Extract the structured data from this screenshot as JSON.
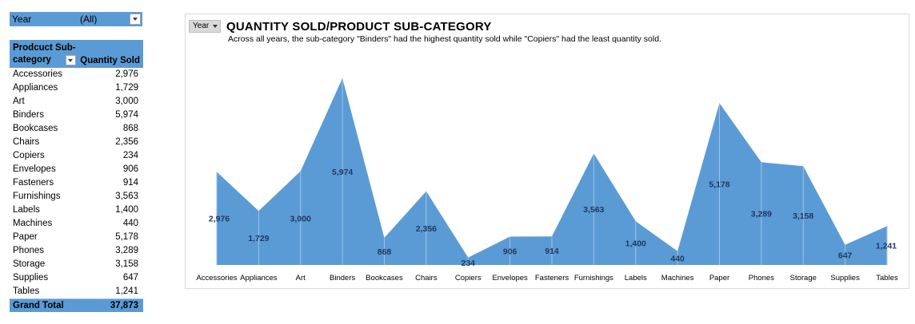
{
  "filter": {
    "label": "Year",
    "value": "(All)"
  },
  "pivot": {
    "row_header": "Prodcuct Sub-category",
    "value_header": "Quantity Sold",
    "rows": [
      {
        "name": "Accessories",
        "value": "2,976"
      },
      {
        "name": "Appliances",
        "value": "1,729"
      },
      {
        "name": "Art",
        "value": "3,000"
      },
      {
        "name": "Binders",
        "value": "5,974"
      },
      {
        "name": "Bookcases",
        "value": "868"
      },
      {
        "name": "Chairs",
        "value": "2,356"
      },
      {
        "name": "Copiers",
        "value": "234"
      },
      {
        "name": "Envelopes",
        "value": "906"
      },
      {
        "name": "Fasteners",
        "value": "914"
      },
      {
        "name": "Furnishings",
        "value": "3,563"
      },
      {
        "name": "Labels",
        "value": "1,400"
      },
      {
        "name": "Machines",
        "value": "440"
      },
      {
        "name": "Paper",
        "value": "5,178"
      },
      {
        "name": "Phones",
        "value": "3,289"
      },
      {
        "name": "Storage",
        "value": "3,158"
      },
      {
        "name": "Supplies",
        "value": "647"
      },
      {
        "name": "Tables",
        "value": "1,241"
      }
    ],
    "total_label": "Grand Total",
    "total_value": "37,873"
  },
  "chart_controls": {
    "year_button": "Year"
  },
  "chart_data": {
    "type": "area",
    "title": "QUANTITY SOLD/PRODUCT SUB-CATEGORY",
    "subtitle": "Across all years, the sub-category \"Binders\" had the highest quantity sold while \"Copiers\" had the least quantity sold.",
    "categories": [
      "Accessories",
      "Appliances",
      "Art",
      "Binders",
      "Bookcases",
      "Chairs",
      "Copiers",
      "Envelopes",
      "Fasteners",
      "Furnishings",
      "Labels",
      "Machines",
      "Paper",
      "Phones",
      "Storage",
      "Supplies",
      "Tables"
    ],
    "values": [
      2976,
      1729,
      3000,
      5974,
      868,
      2356,
      234,
      906,
      914,
      3563,
      1400,
      440,
      5178,
      3289,
      3158,
      647,
      1241
    ],
    "data_labels": [
      "2,976",
      "1,729",
      "3,000",
      "5,974",
      "868",
      "2,356",
      "234",
      "906",
      "914",
      "3,563",
      "1,400",
      "440",
      "5,178",
      "3,289",
      "3,158",
      "647",
      "1,241"
    ],
    "ylim": [
      0,
      6000
    ],
    "grid": false,
    "legend": "none",
    "colors": {
      "fill": "#5b9bd5",
      "line": "#9dc3e6",
      "label": "#1f3864"
    }
  }
}
